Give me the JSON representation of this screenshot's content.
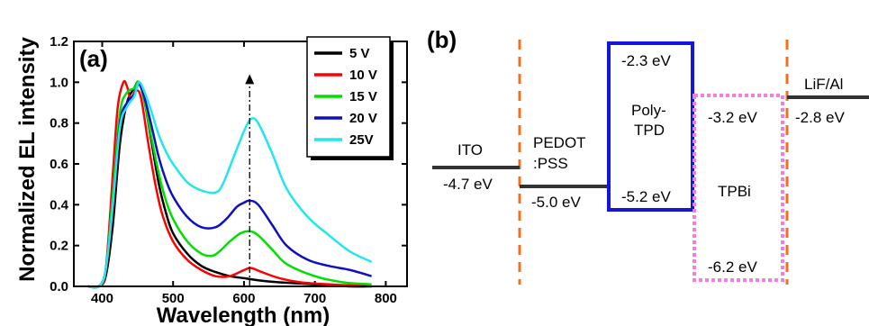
{
  "chart_data": [
    {
      "type": "line",
      "panel_label": "(a)",
      "xlabel": "Wavelength (nm)",
      "ylabel": "Normalized EL intensity",
      "xlim": [
        360,
        830
      ],
      "ylim": [
        0,
        1.2
      ],
      "x_ticks": [
        400,
        500,
        600,
        700,
        800
      ],
      "y_ticks": [
        "0.0",
        "0.2",
        "0.4",
        "0.6",
        "0.8",
        "1.0",
        "1.2"
      ],
      "legend_position": "top-right",
      "marker_wavelength": 608,
      "series": [
        {
          "name": "5 V",
          "color": "#000000",
          "x": [
            380,
            395,
            405,
            415,
            425,
            435,
            445,
            452,
            460,
            470,
            480,
            490,
            500,
            520,
            540,
            560,
            580,
            600,
            620,
            650,
            700,
            750,
            780
          ],
          "y": [
            0.0,
            0.0,
            0.05,
            0.3,
            0.7,
            0.9,
            0.97,
            1.0,
            0.9,
            0.7,
            0.5,
            0.36,
            0.26,
            0.16,
            0.1,
            0.07,
            0.05,
            0.04,
            0.03,
            0.02,
            0.01,
            0.0,
            0.0
          ]
        },
        {
          "name": "10 V",
          "color": "#ff0000",
          "x": [
            380,
            395,
            405,
            415,
            422,
            430,
            435,
            440,
            448,
            455,
            465,
            475,
            485,
            500,
            520,
            540,
            560,
            580,
            600,
            610,
            625,
            650,
            680,
            720,
            780
          ],
          "y": [
            0.0,
            0.0,
            0.08,
            0.55,
            0.88,
            1.0,
            0.98,
            0.92,
            0.96,
            0.92,
            0.7,
            0.5,
            0.35,
            0.22,
            0.13,
            0.08,
            0.05,
            0.05,
            0.08,
            0.09,
            0.07,
            0.04,
            0.02,
            0.01,
            0.0
          ]
        },
        {
          "name": "15 V",
          "color": "#00e000",
          "x": [
            380,
            395,
            405,
            415,
            425,
            435,
            445,
            452,
            460,
            470,
            480,
            490,
            500,
            520,
            540,
            555,
            565,
            580,
            595,
            608,
            620,
            640,
            660,
            700,
            740,
            780
          ],
          "y": [
            0.0,
            0.0,
            0.08,
            0.45,
            0.85,
            0.95,
            0.97,
            1.0,
            0.9,
            0.72,
            0.55,
            0.42,
            0.33,
            0.22,
            0.16,
            0.15,
            0.17,
            0.22,
            0.26,
            0.27,
            0.25,
            0.18,
            0.11,
            0.05,
            0.02,
            0.01
          ]
        },
        {
          "name": "20 V",
          "color": "#1010c0",
          "x": [
            380,
            395,
            405,
            415,
            425,
            435,
            445,
            452,
            460,
            470,
            480,
            490,
            500,
            520,
            540,
            560,
            575,
            590,
            600,
            608,
            620,
            640,
            660,
            690,
            720,
            750,
            780
          ],
          "y": [
            0.0,
            0.0,
            0.08,
            0.4,
            0.8,
            0.9,
            0.94,
            0.99,
            0.92,
            0.78,
            0.63,
            0.52,
            0.44,
            0.34,
            0.29,
            0.29,
            0.33,
            0.39,
            0.41,
            0.42,
            0.4,
            0.3,
            0.2,
            0.13,
            0.1,
            0.08,
            0.05
          ]
        },
        {
          "name": "25V",
          "color": "#22e5ee",
          "x": [
            380,
            395,
            405,
            415,
            425,
            435,
            445,
            452,
            460,
            470,
            480,
            490,
            500,
            520,
            540,
            560,
            570,
            585,
            600,
            610,
            620,
            640,
            660,
            690,
            720,
            750,
            780
          ],
          "y": [
            0.0,
            0.0,
            0.08,
            0.4,
            0.78,
            0.88,
            0.93,
            1.0,
            0.95,
            0.85,
            0.74,
            0.66,
            0.6,
            0.51,
            0.47,
            0.46,
            0.5,
            0.63,
            0.76,
            0.82,
            0.8,
            0.65,
            0.48,
            0.34,
            0.25,
            0.17,
            0.12
          ]
        }
      ]
    },
    {
      "type": "diagram",
      "panel_label": "(b)",
      "levels": {
        "ito_label": "ITO",
        "ito_value": "-4.7 eV",
        "pedot_label_1": "PEDOT",
        "pedot_label_2": ":PSS",
        "pedot_value": "-5.0 eV",
        "polytpd_label_1": "Poly-",
        "polytpd_label_2": "TPD",
        "polytpd_lumo": "-2.3 eV",
        "polytpd_homo": "-5.2 eV",
        "tpbi_label": "TPBi",
        "tpbi_lumo": "-3.2 eV",
        "tpbi_homo": "-6.2 eV",
        "lifal_label": "LiF/Al",
        "lifal_value": "-2.8 eV"
      },
      "colors": {
        "polytpd_box": "#1414dc",
        "tpbi_box": "#f080e0",
        "dashed_line": "#f07020",
        "level_line": "#333333"
      }
    }
  ]
}
